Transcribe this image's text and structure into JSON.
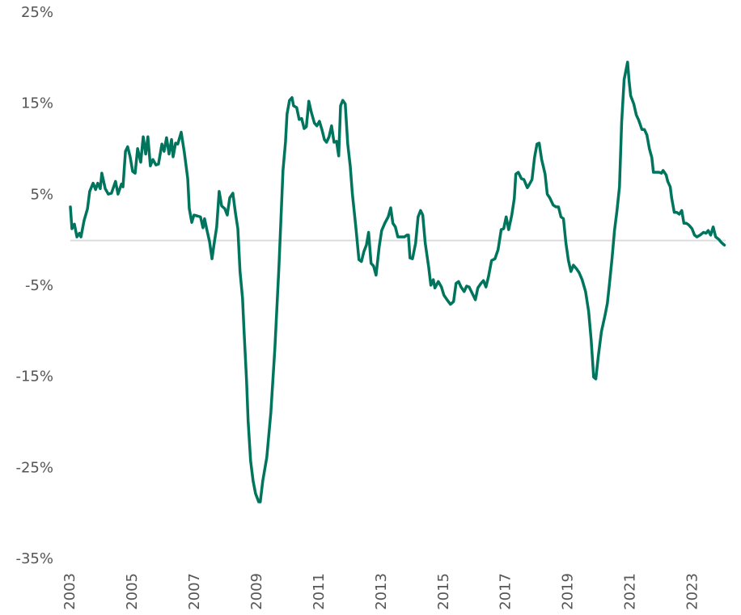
{
  "chart_data": {
    "type": "line",
    "x": [
      2003.0,
      2003.05,
      2003.13,
      2003.21,
      2003.29,
      2003.34,
      2003.44,
      2003.55,
      2003.62,
      2003.73,
      2003.81,
      2003.88,
      2003.96,
      2004.01,
      2004.12,
      2004.22,
      2004.32,
      2004.45,
      2004.53,
      2004.64,
      2004.69,
      2004.77,
      2004.84,
      2004.92,
      2005.0,
      2005.08,
      2005.16,
      2005.26,
      2005.34,
      2005.42,
      2005.49,
      2005.57,
      2005.65,
      2005.75,
      2005.83,
      2005.94,
      2006.01,
      2006.09,
      2006.17,
      2006.25,
      2006.3,
      2006.38,
      2006.45,
      2006.56,
      2006.66,
      2006.77,
      2006.82,
      2006.9,
      2006.97,
      2007.08,
      2007.18,
      2007.26,
      2007.31,
      2007.39,
      2007.47,
      2007.55,
      2007.62,
      2007.7,
      2007.78,
      2007.86,
      2007.96,
      2008.04,
      2008.12,
      2008.22,
      2008.3,
      2008.38,
      2008.45,
      2008.53,
      2008.58,
      2008.66,
      2008.71,
      2008.79,
      2008.87,
      2008.95,
      2009.05,
      2009.1,
      2009.18,
      2009.31,
      2009.44,
      2009.57,
      2009.7,
      2009.83,
      2009.91,
      2009.96,
      2010.04,
      2010.12,
      2010.17,
      2010.27,
      2010.35,
      2010.43,
      2010.51,
      2010.58,
      2010.66,
      2010.74,
      2010.84,
      2010.92,
      2011.0,
      2011.08,
      2011.16,
      2011.23,
      2011.31,
      2011.39,
      2011.47,
      2011.55,
      2011.62,
      2011.68,
      2011.75,
      2011.83,
      2011.91,
      2011.99,
      2012.06,
      2012.17,
      2012.27,
      2012.35,
      2012.43,
      2012.51,
      2012.58,
      2012.66,
      2012.74,
      2012.82,
      2012.92,
      2013.0,
      2013.1,
      2013.21,
      2013.29,
      2013.36,
      2013.44,
      2013.52,
      2013.62,
      2013.73,
      2013.81,
      2013.86,
      2013.91,
      2013.99,
      2014.09,
      2014.17,
      2014.25,
      2014.32,
      2014.4,
      2014.51,
      2014.58,
      2014.66,
      2014.71,
      2014.82,
      2014.92,
      2015.0,
      2015.1,
      2015.21,
      2015.31,
      2015.39,
      2015.47,
      2015.55,
      2015.65,
      2015.73,
      2015.81,
      2015.91,
      2016.01,
      2016.09,
      2016.19,
      2016.27,
      2016.35,
      2016.43,
      2016.53,
      2016.64,
      2016.74,
      2016.84,
      2016.92,
      2017.0,
      2017.08,
      2017.18,
      2017.26,
      2017.31,
      2017.39,
      2017.49,
      2017.57,
      2017.68,
      2017.75,
      2017.83,
      2017.91,
      2017.99,
      2018.06,
      2018.14,
      2018.25,
      2018.32,
      2018.4,
      2018.51,
      2018.6,
      2018.68,
      2018.76,
      2018.84,
      2018.92,
      2019.0,
      2019.08,
      2019.16,
      2019.26,
      2019.34,
      2019.44,
      2019.55,
      2019.65,
      2019.73,
      2019.81,
      2019.88,
      2019.96,
      2020.06,
      2020.17,
      2020.25,
      2020.32,
      2020.4,
      2020.48,
      2020.56,
      2020.64,
      2020.71,
      2020.79,
      2020.9,
      2020.95,
      2021.0,
      2021.1,
      2021.18,
      2021.26,
      2021.36,
      2021.44,
      2021.52,
      2021.6,
      2021.68,
      2021.73,
      2021.81,
      2021.91,
      2021.99,
      2022.04,
      2022.14,
      2022.19,
      2022.27,
      2022.32,
      2022.4,
      2022.48,
      2022.56,
      2022.64,
      2022.71,
      2022.79,
      2022.87,
      2022.97,
      2023.05,
      2023.13,
      2023.23,
      2023.34,
      2023.42,
      2023.49,
      2023.57,
      2023.65,
      2023.73,
      2023.84,
      2023.91,
      2024.01
    ],
    "series": [
      {
        "color": "#00755e",
        "values": [
          3.7,
          1.3,
          1.8,
          0.4,
          0.8,
          0.4,
          2.2,
          3.5,
          5.4,
          6.3,
          5.6,
          6.3,
          5.7,
          7.4,
          5.7,
          5.1,
          5.2,
          6.5,
          5.1,
          6.2,
          5.9,
          9.8,
          10.3,
          9.2,
          7.6,
          7.4,
          10.1,
          8.6,
          11.4,
          9.5,
          11.4,
          8.2,
          8.9,
          8.3,
          8.4,
          10.6,
          9.8,
          11.3,
          9.5,
          11.1,
          9.2,
          10.7,
          10.6,
          11.9,
          9.7,
          6.8,
          3.5,
          2.0,
          2.8,
          2.7,
          2.6,
          1.4,
          2.4,
          1.1,
          -0.1,
          -2.0,
          -0.3,
          1.5,
          5.4,
          3.8,
          3.5,
          2.8,
          4.7,
          5.2,
          3.1,
          1.3,
          -3.4,
          -6.3,
          -10.0,
          -15.4,
          -19.8,
          -24.2,
          -26.4,
          -27.8,
          -28.7,
          -28.7,
          -26.4,
          -23.8,
          -18.9,
          -11.8,
          -2.9,
          7.7,
          10.8,
          13.9,
          15.4,
          15.7,
          14.8,
          14.6,
          13.3,
          13.4,
          12.3,
          12.5,
          15.3,
          14.1,
          12.9,
          12.6,
          13.1,
          12.2,
          11.1,
          10.8,
          11.4,
          12.6,
          10.8,
          10.9,
          9.3,
          14.8,
          15.4,
          15.0,
          10.6,
          8.2,
          5.1,
          1.5,
          -2.1,
          -2.3,
          -1.2,
          -0.5,
          0.9,
          -2.5,
          -2.8,
          -3.8,
          -0.7,
          1.1,
          1.9,
          2.6,
          3.6,
          1.9,
          1.5,
          0.4,
          0.4,
          0.4,
          0.6,
          0.6,
          -1.9,
          -2.0,
          -0.3,
          2.6,
          3.3,
          2.8,
          -0.3,
          -2.9,
          -4.9,
          -4.3,
          -5.2,
          -4.5,
          -5.1,
          -6.0,
          -6.5,
          -7.0,
          -6.7,
          -4.7,
          -4.5,
          -5.1,
          -5.6,
          -5.0,
          -5.1,
          -5.8,
          -6.5,
          -5.2,
          -4.7,
          -4.4,
          -5.1,
          -4.0,
          -2.2,
          -2.0,
          -1.0,
          1.2,
          1.3,
          2.6,
          1.2,
          2.8,
          4.6,
          7.3,
          7.5,
          6.8,
          6.7,
          5.8,
          6.2,
          6.7,
          9.1,
          10.6,
          10.7,
          8.9,
          7.3,
          5.1,
          4.7,
          3.9,
          3.7,
          3.7,
          2.6,
          2.4,
          -0.3,
          -2.2,
          -3.4,
          -2.7,
          -3.1,
          -3.5,
          -4.3,
          -5.6,
          -7.8,
          -10.9,
          -15.0,
          -15.2,
          -12.7,
          -10.0,
          -8.3,
          -6.9,
          -4.7,
          -2.0,
          1.1,
          3.3,
          5.9,
          13.0,
          17.7,
          19.6,
          17.5,
          15.9,
          15.0,
          13.8,
          13.2,
          12.2,
          12.2,
          11.6,
          10.1,
          9.1,
          7.5,
          7.5,
          7.5,
          7.4,
          7.7,
          7.2,
          6.5,
          5.9,
          4.6,
          3.1,
          3.1,
          2.9,
          3.3,
          1.9,
          1.9,
          1.7,
          1.3,
          0.6,
          0.4,
          0.6,
          0.9,
          0.8,
          1.1,
          0.6,
          1.5,
          0.4,
          0.1,
          -0.2,
          -0.5
        ]
      }
    ],
    "xlim": [
      2003,
      2024.05
    ],
    "xticks": [
      2003,
      2005,
      2007,
      2009,
      2011,
      2013,
      2015,
      2017,
      2019,
      2021,
      2023
    ],
    "ylim": [
      -35,
      25
    ],
    "yticks": [
      {
        "value": -35,
        "label": "-35%"
      },
      {
        "value": -25,
        "label": "-25%"
      },
      {
        "value": -15,
        "label": "-15%"
      },
      {
        "value": -5,
        "label": "-5%"
      },
      {
        "value": 5,
        "label": "5%"
      },
      {
        "value": 15,
        "label": "15%"
      },
      {
        "value": 25,
        "label": "25%"
      }
    ],
    "zero_line": true,
    "grid": false
  }
}
